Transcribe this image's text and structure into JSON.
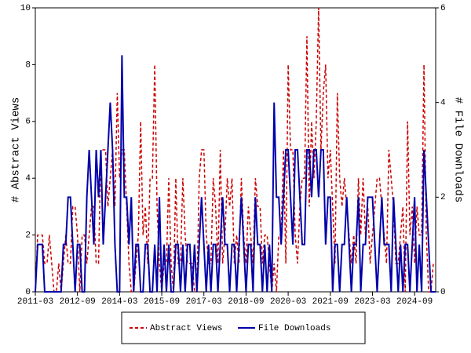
{
  "chart_data": {
    "type": "line",
    "y_label": "# Abstract Views",
    "y2_label": "# File Downloads",
    "x": [
      "2011-03",
      "2011-04",
      "2011-05",
      "2011-06",
      "2011-07",
      "2011-08",
      "2011-09",
      "2011-10",
      "2011-11",
      "2011-12",
      "2012-01",
      "2012-02",
      "2012-03",
      "2012-04",
      "2012-05",
      "2012-06",
      "2012-07",
      "2012-08",
      "2012-09",
      "2012-10",
      "2012-11",
      "2012-12",
      "2013-01",
      "2013-02",
      "2013-03",
      "2013-04",
      "2013-05",
      "2013-06",
      "2013-07",
      "2013-08",
      "2013-09",
      "2013-10",
      "2013-11",
      "2013-12",
      "2014-01",
      "2014-02",
      "2014-03",
      "2014-04",
      "2014-05",
      "2014-06",
      "2014-07",
      "2014-08",
      "2014-09",
      "2014-10",
      "2014-11",
      "2014-12",
      "2015-01",
      "2015-02",
      "2015-03",
      "2015-04",
      "2015-05",
      "2015-06",
      "2015-07",
      "2015-08",
      "2015-09",
      "2015-10",
      "2015-11",
      "2015-12",
      "2016-01",
      "2016-02",
      "2016-03",
      "2016-04",
      "2016-05",
      "2016-06",
      "2016-07",
      "2016-08",
      "2016-09",
      "2016-10",
      "2016-11",
      "2016-12",
      "2017-01",
      "2017-02",
      "2017-03",
      "2017-04",
      "2017-05",
      "2017-06",
      "2017-07",
      "2017-08",
      "2017-09",
      "2017-10",
      "2017-11",
      "2017-12",
      "2018-01",
      "2018-02",
      "2018-03",
      "2018-04",
      "2018-05",
      "2018-06",
      "2018-07",
      "2018-08",
      "2018-09",
      "2018-10",
      "2018-11",
      "2018-12",
      "2019-01",
      "2019-02",
      "2019-03",
      "2019-04",
      "2019-05",
      "2019-06",
      "2019-07",
      "2019-08",
      "2019-09",
      "2019-10",
      "2019-11",
      "2019-12",
      "2020-01",
      "2020-02",
      "2020-03",
      "2020-04",
      "2020-05",
      "2020-06",
      "2020-07",
      "2020-08",
      "2020-09",
      "2020-10",
      "2020-11",
      "2020-12",
      "2021-01",
      "2021-02",
      "2021-03",
      "2021-04",
      "2021-05",
      "2021-06",
      "2021-07",
      "2021-08",
      "2021-09",
      "2021-10",
      "2021-11",
      "2021-12",
      "2022-01",
      "2022-02",
      "2022-03",
      "2022-04",
      "2022-05",
      "2022-06",
      "2022-07",
      "2022-08",
      "2022-09",
      "2022-10",
      "2022-11",
      "2022-12",
      "2023-01",
      "2023-02",
      "2023-03",
      "2023-04",
      "2023-05",
      "2023-06",
      "2023-07",
      "2023-08",
      "2023-09",
      "2023-10",
      "2023-11",
      "2023-12",
      "2024-01",
      "2024-02",
      "2024-03",
      "2024-04",
      "2024-05",
      "2024-06",
      "2024-07",
      "2024-08",
      "2024-09",
      "2024-10",
      "2024-11",
      "2024-12",
      "2025-01",
      "2025-02",
      "2025-03",
      "2025-04",
      "2025-05",
      "2025-06"
    ],
    "series": [
      {
        "name": "Abstract Views",
        "color": "#cc0000",
        "dash": true,
        "values": [
          0,
          2,
          2,
          2,
          1,
          1,
          2,
          1,
          0,
          0,
          1,
          0,
          1,
          2,
          1,
          1,
          3,
          3,
          2,
          0,
          2,
          2,
          1,
          2,
          3,
          3,
          1,
          1,
          5,
          5,
          5,
          3,
          4,
          5,
          3,
          7,
          4,
          5,
          5,
          3,
          1,
          0,
          0,
          1,
          2,
          6,
          2,
          3,
          1,
          4,
          4,
          8,
          3,
          1,
          0,
          1,
          1,
          4,
          1,
          0,
          4,
          1,
          1,
          4,
          2,
          1,
          1,
          1,
          0,
          0,
          4,
          5,
          5,
          2,
          1,
          1,
          4,
          3,
          1,
          5,
          1,
          2,
          4,
          3,
          4,
          1,
          2,
          1,
          4,
          2,
          1,
          3,
          2,
          1,
          4,
          3,
          3,
          1,
          2,
          2,
          1,
          0,
          1,
          0,
          2,
          2,
          5,
          1,
          8,
          5,
          5,
          2,
          1,
          3,
          4,
          4,
          9,
          3,
          6,
          4,
          6,
          10,
          5,
          7,
          8,
          4,
          5,
          3,
          1,
          7,
          4,
          3,
          4,
          3,
          2,
          1,
          2,
          1,
          4,
          2,
          4,
          2,
          3,
          1,
          2,
          3,
          4,
          4,
          3,
          2,
          1,
          5,
          4,
          3,
          1,
          1,
          2,
          3,
          0,
          6,
          2,
          3,
          1,
          3,
          2,
          2,
          8,
          2,
          0,
          0,
          1,
          1
        ]
      },
      {
        "name": "File Downloads",
        "color": "#0000aa",
        "axis": "y2",
        "values": [
          0,
          1,
          1,
          1,
          0,
          0,
          0,
          0,
          0,
          0,
          0,
          0,
          1,
          1,
          2,
          2,
          1,
          0,
          1,
          1,
          0,
          0,
          2,
          3,
          2,
          1,
          3,
          2,
          3,
          1,
          2,
          3,
          4,
          3,
          1,
          0,
          0,
          5,
          2,
          2,
          1,
          2,
          0,
          1,
          1,
          0,
          0,
          1,
          1,
          0,
          0,
          1,
          0,
          2,
          0,
          1,
          0,
          1,
          0,
          0,
          1,
          1,
          0,
          1,
          0,
          1,
          1,
          0,
          1,
          0,
          1,
          2,
          1,
          0,
          1,
          0,
          1,
          1,
          0,
          1,
          2,
          1,
          1,
          0,
          1,
          1,
          0,
          1,
          2,
          1,
          0,
          1,
          1,
          0,
          2,
          1,
          1,
          0,
          1,
          0,
          1,
          0,
          4,
          2,
          2,
          1,
          2,
          3,
          3,
          2,
          1,
          3,
          3,
          2,
          1,
          1,
          3,
          3,
          2,
          3,
          3,
          2,
          3,
          3,
          1,
          2,
          2,
          0,
          1,
          1,
          0,
          1,
          1,
          2,
          1,
          0,
          1,
          1,
          2,
          0,
          1,
          1,
          2,
          2,
          2,
          1,
          0,
          1,
          2,
          1,
          1,
          1,
          0,
          2,
          1,
          0,
          1,
          0,
          1,
          1,
          0,
          1,
          2,
          0,
          1,
          0,
          3,
          2,
          1,
          0,
          0,
          0
        ]
      }
    ],
    "xlim": [
      "2011-03",
      "2025-06"
    ],
    "xticks": [
      "2011-03",
      "2012-09",
      "2014-03",
      "2015-09",
      "2017-03",
      "2018-09",
      "2020-03",
      "2021-09",
      "2023-03",
      "2024-09"
    ],
    "ylim": [
      0,
      10
    ],
    "yticks": [
      0,
      2,
      4,
      6,
      8,
      10
    ],
    "y2lim": [
      0,
      6
    ],
    "y2ticks": [
      0,
      2,
      4,
      6
    ],
    "legend": "bottom",
    "grid": false
  }
}
